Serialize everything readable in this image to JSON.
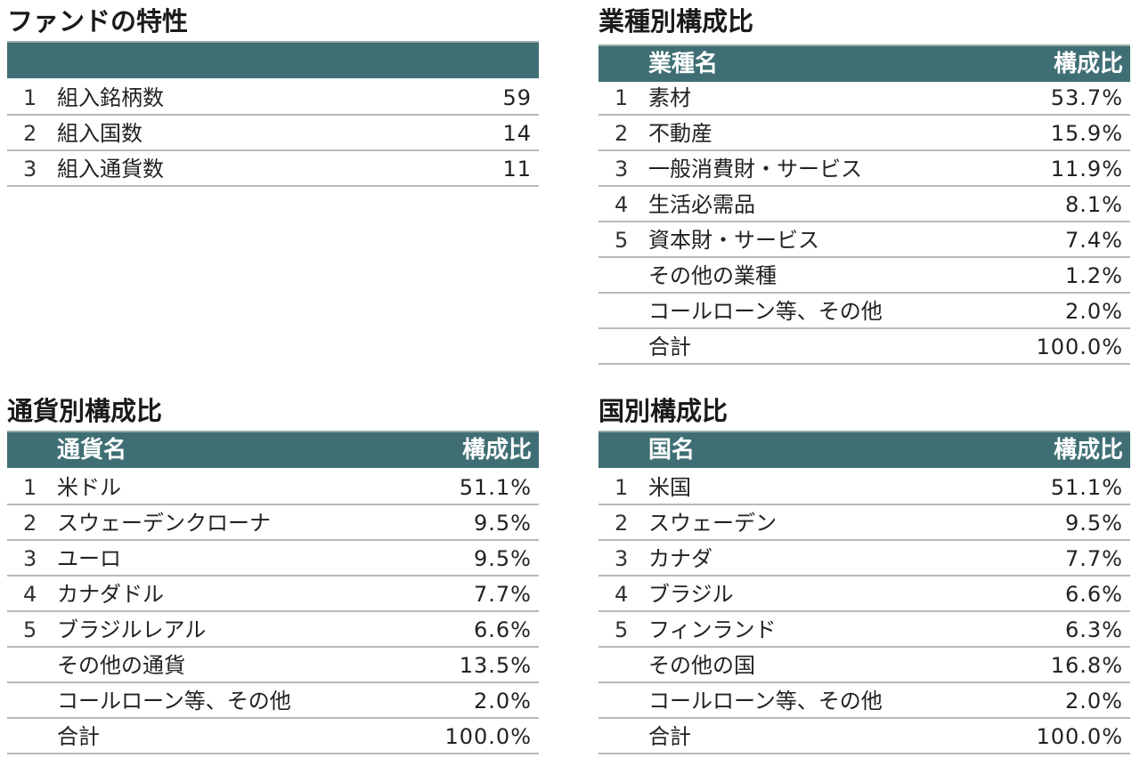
{
  "fund": {
    "title": "ファンドの特性",
    "rows": [
      {
        "rank": "1",
        "name": "組入銘柄数",
        "value": "59"
      },
      {
        "rank": "2",
        "name": "組入国数",
        "value": "14"
      },
      {
        "rank": "3",
        "name": "組入通貨数",
        "value": "11"
      }
    ]
  },
  "industry": {
    "title": "業種別構成比",
    "header_name": "業種名",
    "header_value": "構成比",
    "rows": [
      {
        "rank": "1",
        "name": "素材",
        "value": "53.7%"
      },
      {
        "rank": "2",
        "name": "不動産",
        "value": "15.9%"
      },
      {
        "rank": "3",
        "name": "一般消費財・サービス",
        "value": "11.9%"
      },
      {
        "rank": "4",
        "name": "生活必需品",
        "value": "8.1%"
      },
      {
        "rank": "5",
        "name": "資本財・サービス",
        "value": "7.4%"
      },
      {
        "rank": "",
        "name": "その他の業種",
        "value": "1.2%"
      },
      {
        "rank": "",
        "name": "コールローン等、その他",
        "value": "2.0%"
      },
      {
        "rank": "",
        "name": "合計",
        "value": "100.0%"
      }
    ]
  },
  "currency": {
    "title": "通貨別構成比",
    "header_name": "通貨名",
    "header_value": "構成比",
    "rows": [
      {
        "rank": "1",
        "name": "米ドル",
        "value": "51.1%"
      },
      {
        "rank": "2",
        "name": "スウェーデンクローナ",
        "value": "9.5%"
      },
      {
        "rank": "3",
        "name": "ユーロ",
        "value": "9.5%"
      },
      {
        "rank": "4",
        "name": "カナダドル",
        "value": "7.7%"
      },
      {
        "rank": "5",
        "name": "ブラジルレアル",
        "value": "6.6%"
      },
      {
        "rank": "",
        "name": "その他の通貨",
        "value": "13.5%"
      },
      {
        "rank": "",
        "name": "コールローン等、その他",
        "value": "2.0%"
      },
      {
        "rank": "",
        "name": "合計",
        "value": "100.0%"
      }
    ]
  },
  "country": {
    "title": "国別構成比",
    "header_name": "国名",
    "header_value": "構成比",
    "rows": [
      {
        "rank": "1",
        "name": "米国",
        "value": "51.1%"
      },
      {
        "rank": "2",
        "name": "スウェーデン",
        "value": "9.5%"
      },
      {
        "rank": "3",
        "name": "カナダ",
        "value": "7.7%"
      },
      {
        "rank": "4",
        "name": "ブラジル",
        "value": "6.6%"
      },
      {
        "rank": "5",
        "name": "フィンランド",
        "value": "6.3%"
      },
      {
        "rank": "",
        "name": "その他の国",
        "value": "16.8%"
      },
      {
        "rank": "",
        "name": "コールローン等、その他",
        "value": "2.0%"
      },
      {
        "rank": "",
        "name": "合計",
        "value": "100.0%"
      }
    ]
  },
  "colors": {
    "header_bg": "#3f6f74",
    "header_text": "#ffffff",
    "rule": "#b8b8b8"
  }
}
